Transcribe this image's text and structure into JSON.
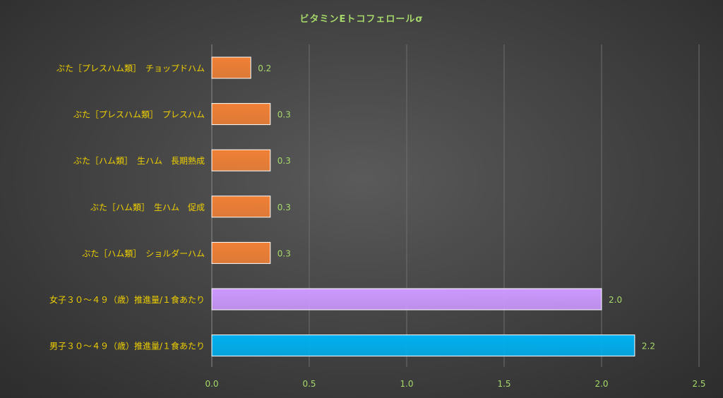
{
  "chart_data": {
    "type": "bar",
    "orientation": "horizontal",
    "title": "ビタミンEトコフェロールσ",
    "xlabel": "",
    "ylabel": "",
    "xlim": [
      0,
      2.5
    ],
    "x_ticks": [
      "0.0",
      "0.5",
      "1.0",
      "1.5",
      "2.0",
      "2.5"
    ],
    "x_tick_values": [
      0,
      0.5,
      1.0,
      1.5,
      2.0,
      2.5
    ],
    "grid": "vertical",
    "legend": "none",
    "categories": [
      "ぶた［プレスハム類］　チョップドハム",
      "ぶた［プレスハム類］　プレスハム",
      "ぶた［ハム類］　生ハム　長期熟成",
      "ぶた［ハム類］　生ハム　促成",
      "ぶた［ハム類］　ショルダーハム",
      "女子３０～４９（歳）推進量/１食あたり",
      "男子３０～４９（歳）推進量/１食あたり"
    ],
    "values": [
      0.2,
      0.3,
      0.3,
      0.3,
      0.3,
      2.0,
      2.17
    ],
    "value_labels": [
      "0.2",
      "0.3",
      "0.3",
      "0.3",
      "0.3",
      "2.0",
      "2.2"
    ],
    "bar_colors": [
      "#f08035",
      "#f08035",
      "#f08035",
      "#f08035",
      "#f08035",
      "#cc99ff",
      "#00b0f0"
    ],
    "colors": {
      "title": "#a6d96a",
      "category_label": "#f0d000",
      "value_label": "#a6d96a",
      "tick_label": "#a6d96a",
      "grid": "#6e6e6e",
      "axis": "#8a8a8a"
    }
  }
}
